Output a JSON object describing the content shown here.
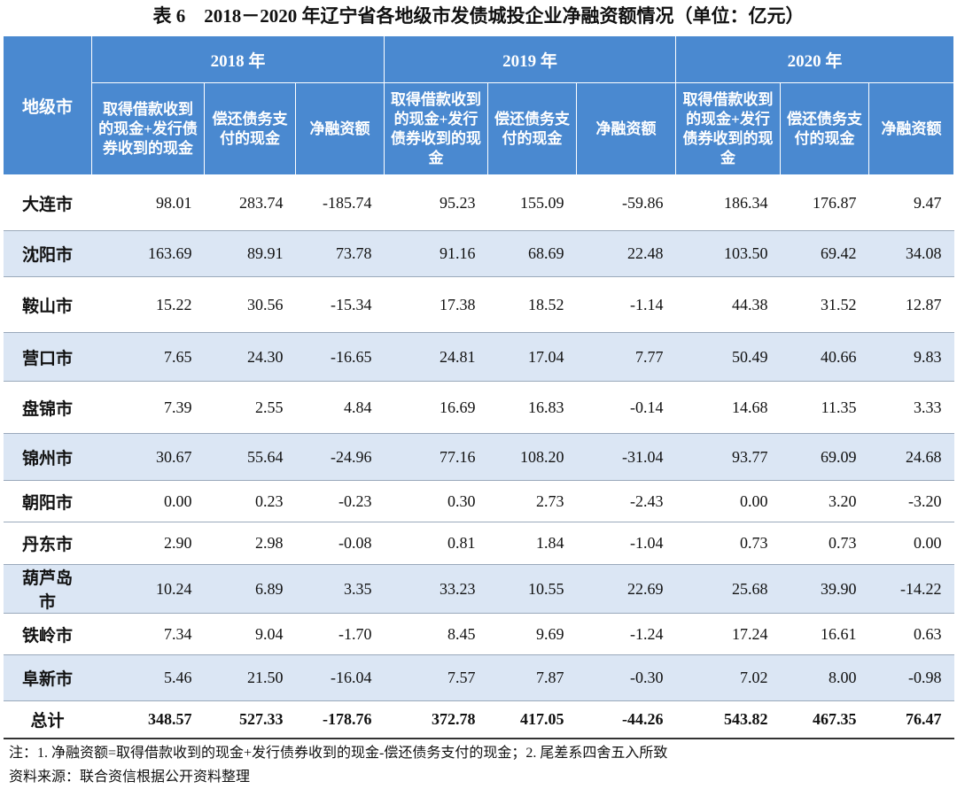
{
  "title": "表 6　2018－2020 年辽宁省各地级市发债城投企业净融资额情况（单位：亿元）",
  "table": {
    "header": {
      "city_label": "地级市",
      "years": [
        {
          "label": "2018 年",
          "columns": [
            "取得借款收到的现金+发行债券收到的现金",
            "偿还债务支付的现金",
            "净融资额"
          ]
        },
        {
          "label": "2019 年",
          "columns": [
            "取得借款收到的现金+发行债券收到的现金",
            "偿还债务支付的现金",
            "净融资额"
          ]
        },
        {
          "label": "2020 年",
          "columns": [
            "取得借款收到的现金+发行债券收到的现金",
            "偿还债务支付的现金",
            "净融资额"
          ]
        }
      ]
    },
    "rows": [
      {
        "city": "大连市",
        "values": [
          "98.01",
          "283.74",
          "-185.74",
          "95.23",
          "155.09",
          "-59.86",
          "186.34",
          "176.87",
          "9.47"
        ]
      },
      {
        "city": "沈阳市",
        "values": [
          "163.69",
          "89.91",
          "73.78",
          "91.16",
          "68.69",
          "22.48",
          "103.50",
          "69.42",
          "34.08"
        ]
      },
      {
        "city": "鞍山市",
        "values": [
          "15.22",
          "30.56",
          "-15.34",
          "17.38",
          "18.52",
          "-1.14",
          "44.38",
          "31.52",
          "12.87"
        ]
      },
      {
        "city": "营口市",
        "values": [
          "7.65",
          "24.30",
          "-16.65",
          "24.81",
          "17.04",
          "7.77",
          "50.49",
          "40.66",
          "9.83"
        ]
      },
      {
        "city": "盘锦市",
        "values": [
          "7.39",
          "2.55",
          "4.84",
          "16.69",
          "16.83",
          "-0.14",
          "14.68",
          "11.35",
          "3.33"
        ]
      },
      {
        "city": "锦州市",
        "values": [
          "30.67",
          "55.64",
          "-24.96",
          "77.16",
          "108.20",
          "-31.04",
          "93.77",
          "69.09",
          "24.68"
        ]
      },
      {
        "city": "朝阳市",
        "values": [
          "0.00",
          "0.23",
          "-0.23",
          "0.30",
          "2.73",
          "-2.43",
          "0.00",
          "3.20",
          "-3.20"
        ]
      },
      {
        "city": "丹东市",
        "values": [
          "2.90",
          "2.98",
          "-0.08",
          "0.81",
          "1.84",
          "-1.04",
          "0.73",
          "0.73",
          "0.00"
        ]
      },
      {
        "city": "葫芦岛市",
        "values": [
          "10.24",
          "6.89",
          "3.35",
          "33.23",
          "10.55",
          "22.69",
          "25.68",
          "39.90",
          "-14.22"
        ]
      },
      {
        "city": "铁岭市",
        "values": [
          "7.34",
          "9.04",
          "-1.70",
          "8.45",
          "9.69",
          "-1.24",
          "17.24",
          "16.61",
          "0.63"
        ]
      },
      {
        "city": "阜新市",
        "values": [
          "5.46",
          "21.50",
          "-16.04",
          "7.57",
          "7.87",
          "-0.30",
          "7.02",
          "8.00",
          "-0.98"
        ]
      }
    ],
    "total": {
      "label": "总计",
      "values": [
        "348.57",
        "527.33",
        "-178.76",
        "372.78",
        "417.05",
        "-44.26",
        "543.82",
        "467.35",
        "76.47"
      ]
    }
  },
  "notes": [
    "注：1. 净融资额=取得借款收到的现金+发行债券收到的现金-偿还债务支付的现金；2. 尾差系四舍五入所致",
    "资料来源：联合资信根据公开资料整理"
  ]
}
